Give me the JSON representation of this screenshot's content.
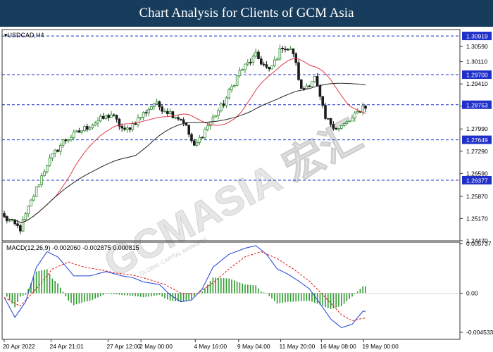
{
  "header": {
    "title": "Chart Analysis for Clients of GCM Asia"
  },
  "watermark": {
    "text": "GCMASIA 宏汇",
    "subtext": "GLOBAL CAPITAL MARKETS"
  },
  "colors": {
    "header_bg": "#183c5c",
    "bull_candle": "#2e8b2e",
    "bear_candle": "#1a1a1a",
    "ma_fast": "#e03c4a",
    "ma_slow": "#222222",
    "level_line": "#1f2fc8",
    "current_price_line": "#1f2fc8",
    "macd_line": "#1f3fd8",
    "signal_line": "#e01818",
    "histogram": "#2e9a2e"
  },
  "chart_data": [
    {
      "type": "candlestick",
      "title": "USDCAD,H4",
      "symbol": "USDCAD",
      "timeframe": "H4",
      "ylim": [
        1.2447,
        1.3112
      ],
      "price_ticks": [
        "1.30590",
        "1.30110",
        "1.29410",
        "1.28710",
        "1.27990",
        "1.27290",
        "1.26590",
        "1.25870",
        "1.25170",
        "1.24470"
      ],
      "levels": [
        "1.30919",
        "1.29700",
        "1.27649",
        "1.26377"
      ],
      "current_price": "1.28753",
      "close_path": [
        [
          0,
          1.252
        ],
        [
          6,
          1.2485
        ],
        [
          10,
          1.257
        ],
        [
          16,
          1.269
        ],
        [
          22,
          1.276
        ],
        [
          28,
          1.279
        ],
        [
          34,
          1.282
        ],
        [
          40,
          1.2845
        ],
        [
          45,
          1.279
        ],
        [
          50,
          1.283
        ],
        [
          56,
          1.288
        ],
        [
          62,
          1.285
        ],
        [
          67,
          1.2825
        ],
        [
          71,
          1.274
        ],
        [
          76,
          1.281
        ],
        [
          82,
          1.288
        ],
        [
          88,
          1.298
        ],
        [
          94,
          1.303
        ],
        [
          99,
          1.298
        ],
        [
          104,
          1.306
        ],
        [
          108,
          1.304
        ],
        [
          111,
          1.292
        ],
        [
          116,
          1.296
        ],
        [
          120,
          1.283
        ],
        [
          125,
          1.28
        ],
        [
          130,
          1.283
        ],
        [
          134,
          1.287
        ]
      ],
      "ma_fast_period": 20,
      "ma_slow_period": 50,
      "x_tick_labels": [
        "20 Apr 2022",
        "24 Apr 21:01",
        "27 Apr 12:00",
        "2 May 00:00",
        "4 May 16:00",
        "9 May 04:00",
        "11 May 20:00",
        "16 May 08:00",
        "19 May 00:00"
      ],
      "x_tick_positions": [
        0,
        17.5,
        38.8,
        51.1,
        71.4,
        87.6,
        103.3,
        118.5,
        134.3
      ]
    },
    {
      "type": "macd",
      "title": "MACD(12,26,9) -0.002060 -0.002875 0.000815",
      "params": "12,26,9",
      "macd": -0.00206,
      "signal": -0.002875,
      "histogram": 0.000815,
      "ylim": [
        -0.004533,
        0.005737
      ],
      "ticks": [
        "0.005737",
        "0.00",
        "-0.004533"
      ],
      "series": [
        {
          "name": "MACD",
          "x": [
            0,
            4,
            8,
            12,
            16,
            20,
            26,
            32,
            38,
            44,
            48,
            52,
            58,
            62,
            66,
            70,
            74,
            78,
            84,
            90,
            94,
            98,
            102,
            106,
            110,
            114,
            118,
            122,
            126,
            130,
            134
          ],
          "values": [
            -0.0005,
            -0.0028,
            -0.001,
            0.003,
            0.0048,
            0.0042,
            0.002,
            0.002,
            0.0025,
            0.002,
            0.0018,
            0.0013,
            0.001,
            -0.0002,
            -0.001,
            -0.0008,
            0.0005,
            0.003,
            0.0045,
            0.0052,
            0.0055,
            0.0045,
            0.0028,
            0.0022,
            0.0014,
            0.0005,
            -0.0012,
            -0.003,
            -0.004,
            -0.0036,
            -0.0021
          ]
        },
        {
          "name": "Signal",
          "x": [
            0,
            6,
            12,
            18,
            24,
            30,
            36,
            42,
            48,
            54,
            60,
            66,
            72,
            78,
            84,
            90,
            96,
            102,
            108,
            114,
            120,
            126,
            130,
            134
          ],
          "values": [
            -0.0005,
            -0.0015,
            0.0005,
            0.0028,
            0.0036,
            0.003,
            0.0027,
            0.0023,
            0.0021,
            0.0016,
            0.001,
            0.0,
            -0.0001,
            0.0012,
            0.0028,
            0.0042,
            0.0048,
            0.004,
            0.0028,
            0.0014,
            -0.0005,
            -0.0025,
            -0.0032,
            -0.0029
          ]
        }
      ]
    }
  ]
}
